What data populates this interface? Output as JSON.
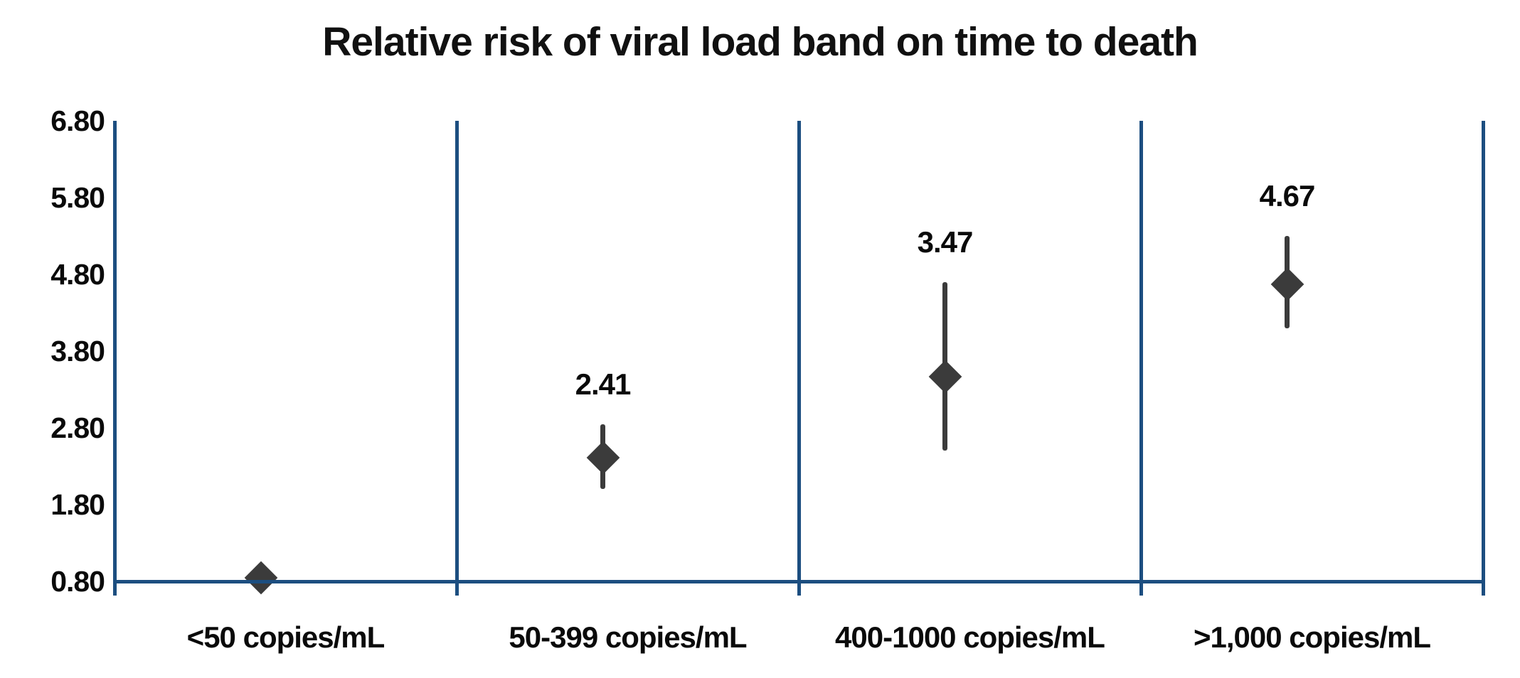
{
  "chart_data": {
    "type": "scatter",
    "title": "Relative risk of viral load band on time to death",
    "categories": [
      "<50 copies/mL",
      "50-399 copies/mL",
      "400-1000 copies/mL",
      ">1,000 copies/mL"
    ],
    "points": [
      {
        "category": "<50 copies/mL",
        "value": 0.85,
        "label": "",
        "ci_low": null,
        "ci_high": null
      },
      {
        "category": "50-399 copies/mL",
        "value": 2.41,
        "label": "2.41",
        "ci_low": 2.0,
        "ci_high": 2.85
      },
      {
        "category": "400-1000 copies/mL",
        "value": 3.47,
        "label": "3.47",
        "ci_low": 2.5,
        "ci_high": 4.7
      },
      {
        "category": ">1,000 copies/mL",
        "value": 4.67,
        "label": "4.67",
        "ci_low": 4.1,
        "ci_high": 5.3
      }
    ],
    "y_axis": {
      "min": 0.8,
      "max": 6.8,
      "tick_interval": 1.0,
      "ticks": [
        "6.80",
        "5.80",
        "4.80",
        "3.80",
        "2.80",
        "1.80",
        "0.80"
      ]
    },
    "marker_shape": "diamond",
    "error_bars": true,
    "legend": "none",
    "grid": "vertical panel dividers only",
    "colors": {
      "axis_blue": "#1C4E80",
      "marker_gray": "#3B3B3B",
      "text": "#0a0a0a",
      "background": "#FFFFFF"
    }
  }
}
